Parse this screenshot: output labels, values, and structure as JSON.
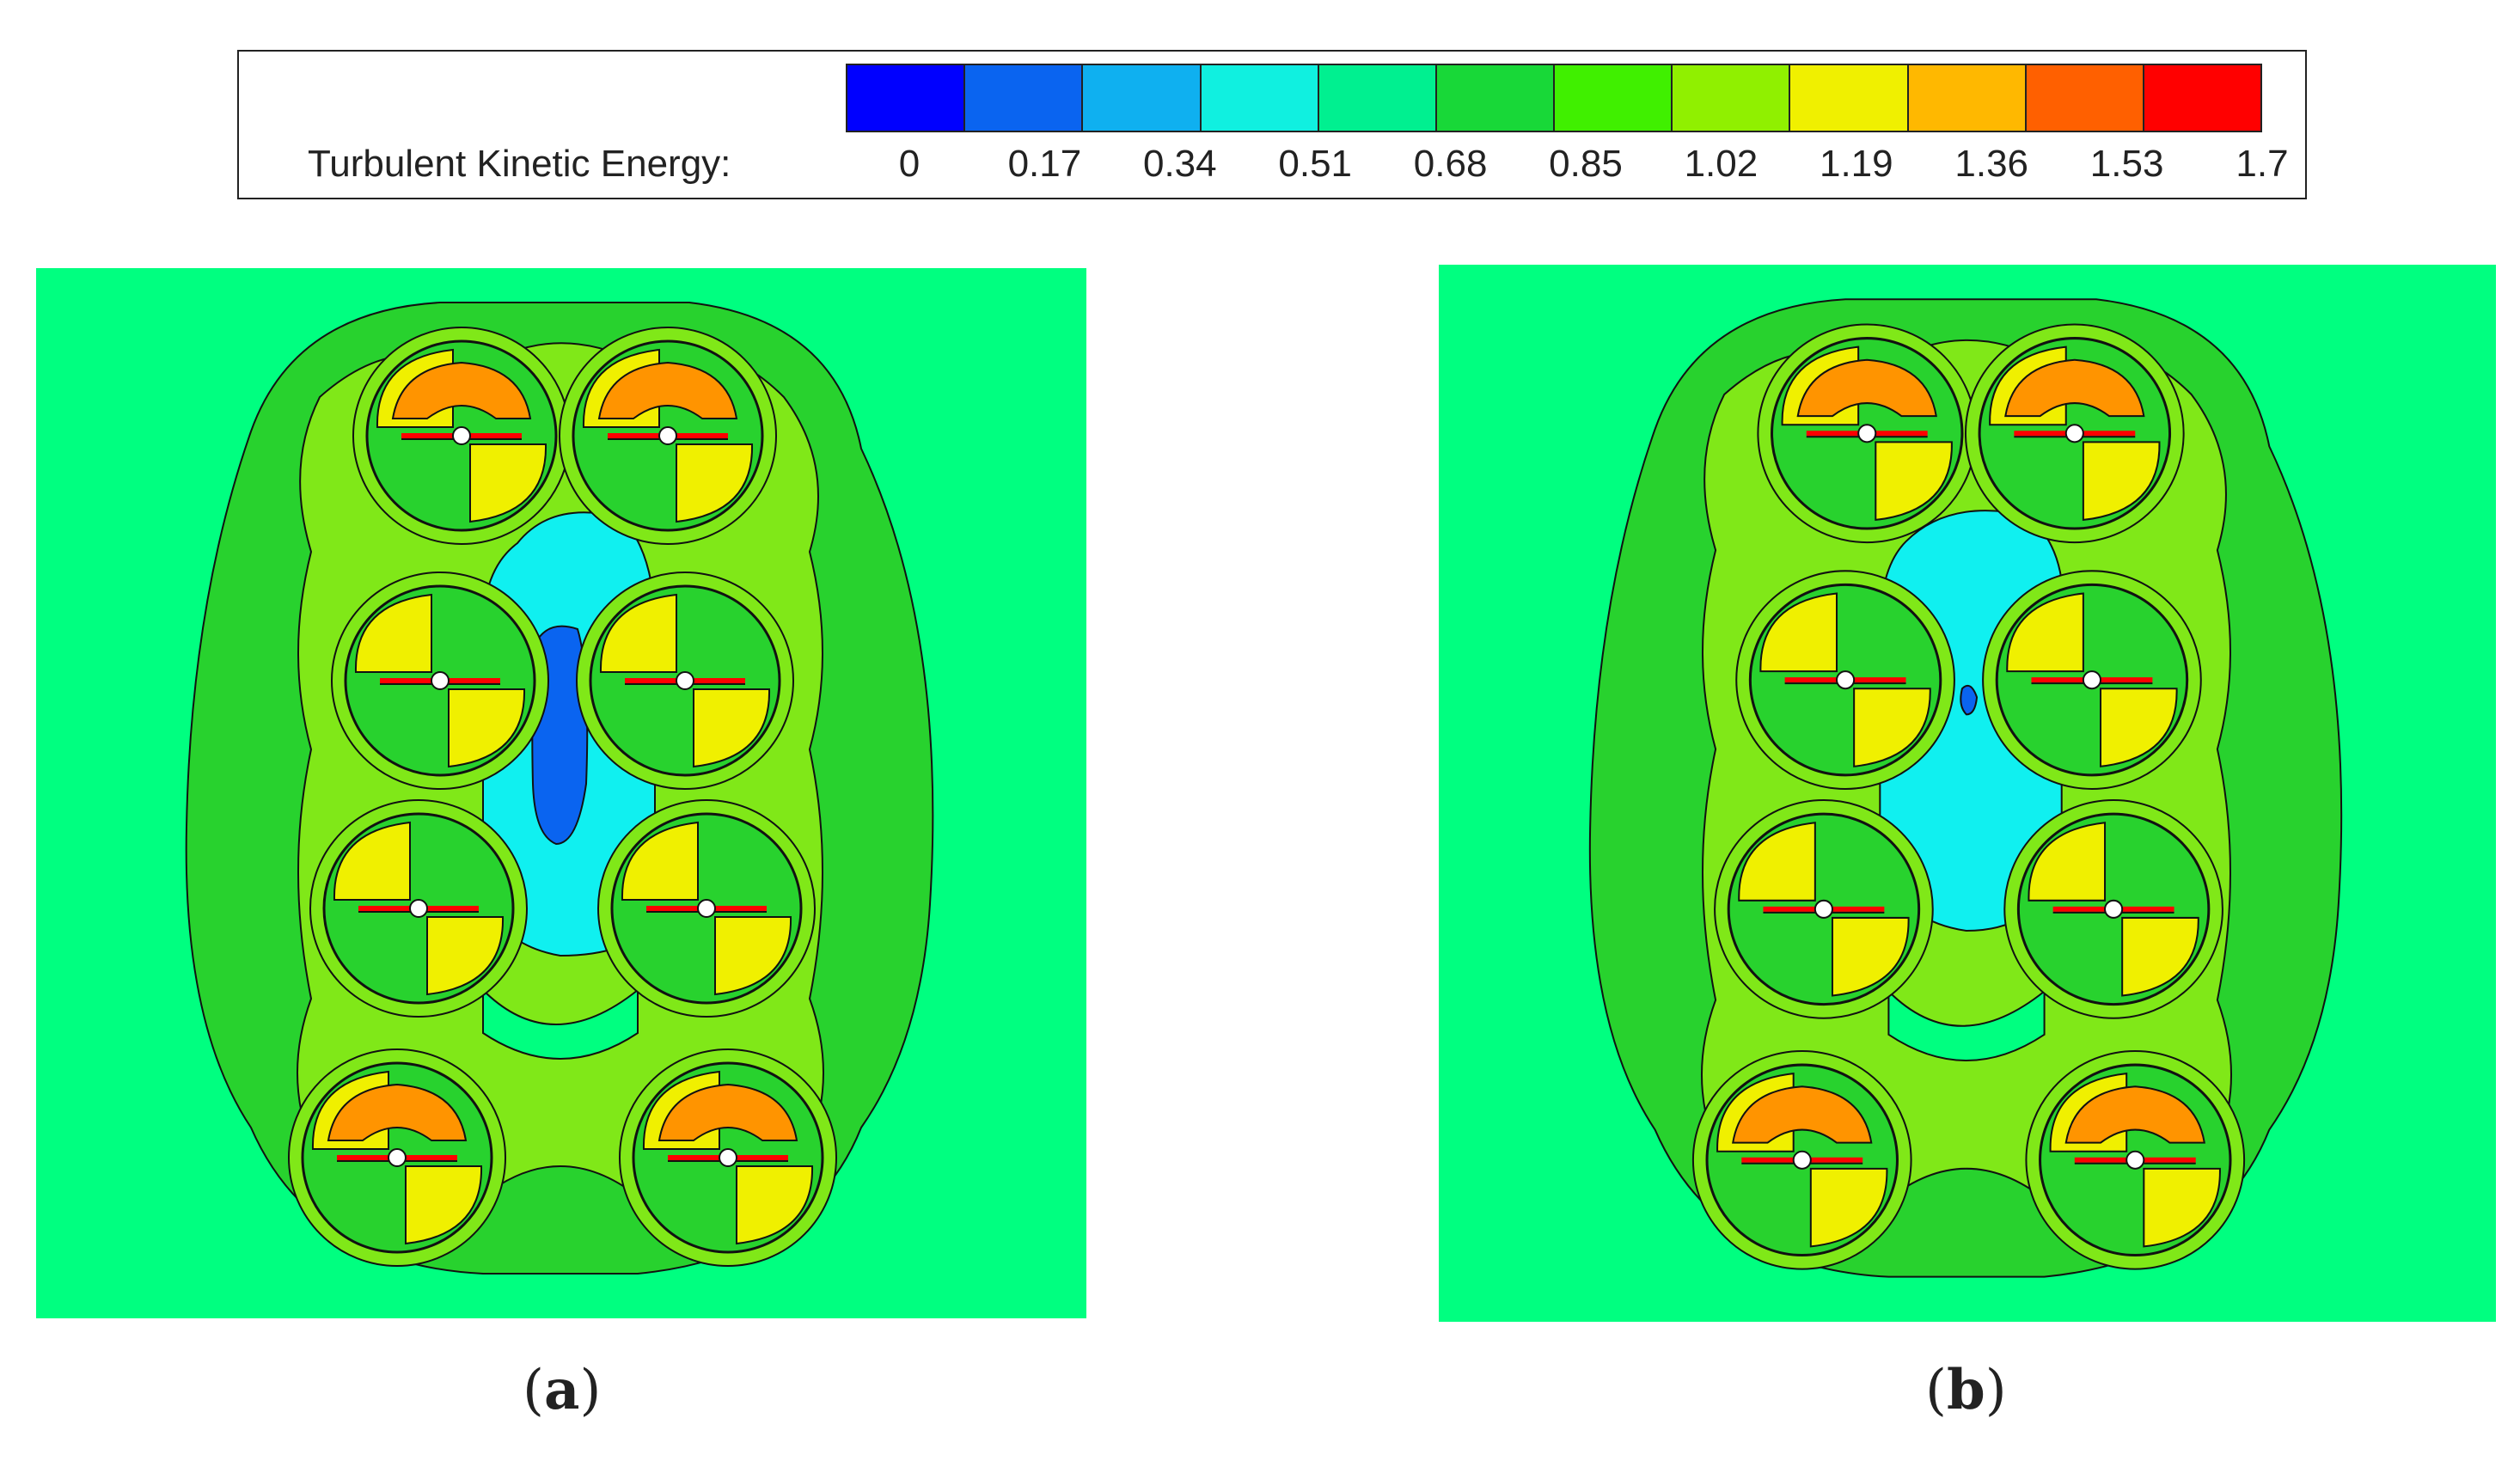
{
  "legend": {
    "title": "Turbulent Kinetic Energy:",
    "ticks": [
      "0",
      "0.17",
      "0.34",
      "0.51",
      "0.68",
      "0.85",
      "1.02",
      "1.19",
      "1.36",
      "1.53",
      "1.7"
    ],
    "colors": [
      "#0000ff",
      "#0a64f0",
      "#0fb0f0",
      "#10f0e0",
      "#00f090",
      "#18d838",
      "#40f000",
      "#90f000",
      "#f0f000",
      "#ffb800",
      "#ff6000",
      "#ff0000"
    ]
  },
  "panels": [
    {
      "label": "a",
      "open": "(",
      "close": ")"
    },
    {
      "label": "b",
      "open": "(",
      "close": ")"
    }
  ],
  "palette": {
    "background": "#00ff80",
    "outer_zone": "#28d22e",
    "ring_zone": "#80e818",
    "rotor_yellow": "#f0f000",
    "rotor_orange": "#ff9400",
    "core_cyan": "#10f0f0",
    "core_blue": "#0a64f0",
    "blade_red": "#ff0000"
  }
}
